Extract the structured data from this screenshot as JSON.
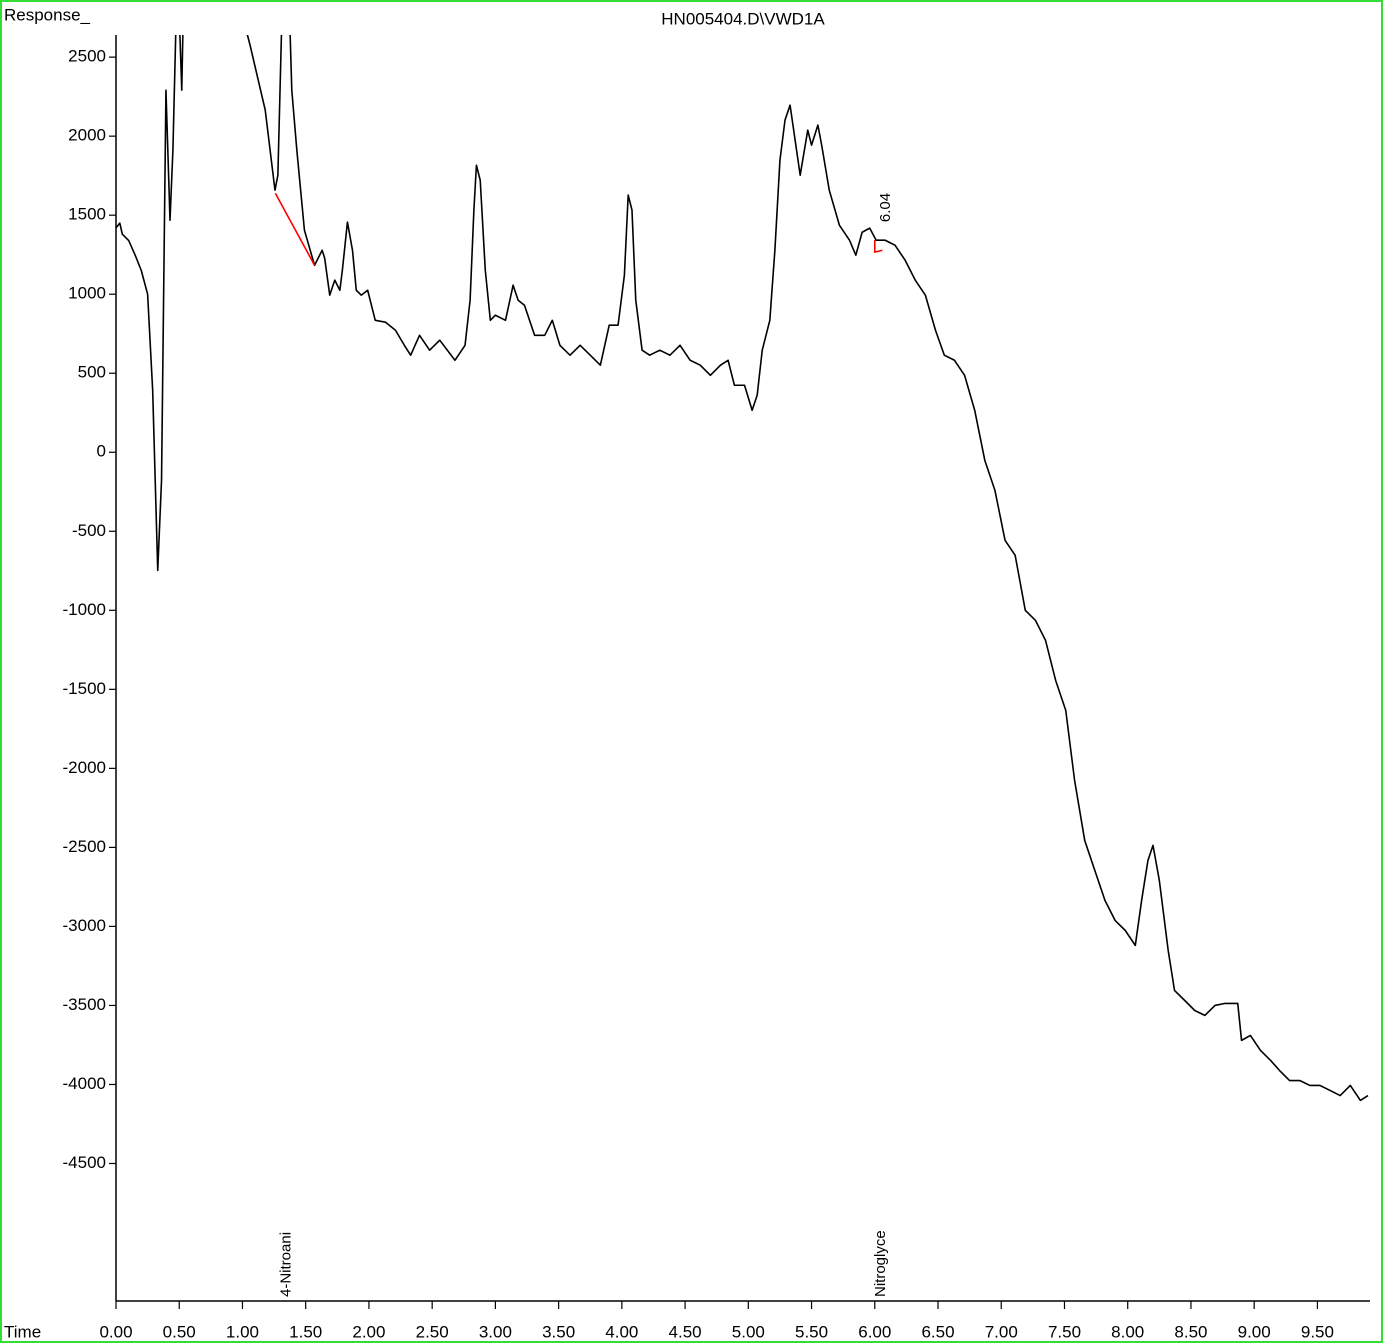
{
  "chart_data": {
    "type": "line",
    "title": "HN005404.D\\VWD1A",
    "y_label": "Response_",
    "x_label": "Time",
    "xlim": [
      0,
      9.9
    ],
    "ylim": [
      -5370,
      2640
    ],
    "xticks": [
      {
        "value": 0,
        "label": "0.00"
      },
      {
        "value": 0.5,
        "label": "0.50"
      },
      {
        "value": 1,
        "label": "1.00"
      },
      {
        "value": 1.5,
        "label": "1.50"
      },
      {
        "value": 2,
        "label": "2.00"
      },
      {
        "value": 2.5,
        "label": "2.50"
      },
      {
        "value": 3,
        "label": "3.00"
      },
      {
        "value": 3.5,
        "label": "3.50"
      },
      {
        "value": 4,
        "label": "4.00"
      },
      {
        "value": 4.5,
        "label": "4.50"
      },
      {
        "value": 5,
        "label": "5.00"
      },
      {
        "value": 5.5,
        "label": "5.50"
      },
      {
        "value": 6,
        "label": "6.00"
      },
      {
        "value": 6.5,
        "label": "6.50"
      },
      {
        "value": 7,
        "label": "7.00"
      },
      {
        "value": 7.5,
        "label": "7.50"
      },
      {
        "value": 8,
        "label": "8.00"
      },
      {
        "value": 8.5,
        "label": "8.50"
      },
      {
        "value": 9,
        "label": "9.00"
      },
      {
        "value": 9.5,
        "label": "9.50"
      }
    ],
    "yticks": [
      2500,
      2000,
      1500,
      1000,
      500,
      0,
      -500,
      -1000,
      -1500,
      -2000,
      -2500,
      -3000,
      -3500,
      -4000,
      -4500
    ],
    "x": [
      0,
      0.03,
      0.05,
      0.1,
      0.15,
      0.2,
      0.25,
      0.29,
      0.33,
      0.36,
      0.395,
      0.427,
      0.45,
      0.474,
      0.49,
      0.52,
      0.53,
      1.0,
      1.02,
      1.06,
      1.18,
      1.257,
      1.28,
      1.31,
      1.34,
      1.375,
      1.39,
      1.43,
      1.49,
      1.57,
      1.63,
      1.65,
      1.69,
      1.73,
      1.77,
      1.79,
      1.83,
      1.87,
      1.9,
      1.94,
      1.99,
      2.05,
      2.13,
      2.21,
      2.28,
      2.33,
      2.4,
      2.48,
      2.56,
      2.68,
      2.76,
      2.8,
      2.83,
      2.85,
      2.88,
      2.92,
      2.96,
      3.0,
      3.08,
      3.14,
      3.18,
      3.23,
      3.31,
      3.39,
      3.45,
      3.51,
      3.59,
      3.67,
      3.75,
      3.83,
      3.9,
      3.97,
      4.02,
      4.05,
      4.08,
      4.11,
      4.16,
      4.22,
      4.3,
      4.38,
      4.46,
      4.54,
      4.62,
      4.7,
      4.78,
      4.84,
      4.89,
      4.97,
      5.03,
      5.07,
      5.11,
      5.17,
      5.21,
      5.25,
      5.29,
      5.33,
      5.37,
      5.41,
      5.47,
      5.5,
      5.55,
      5.58,
      5.64,
      5.72,
      5.8,
      5.85,
      5.9,
      5.96,
      6.01,
      6.08,
      6.16,
      6.24,
      6.32,
      6.4,
      6.48,
      6.55,
      6.63,
      6.71,
      6.79,
      6.87,
      6.95,
      7.03,
      7.11,
      7.19,
      7.27,
      7.35,
      7.43,
      7.51,
      7.58,
      7.66,
      7.74,
      7.82,
      7.9,
      7.98,
      8.06,
      8.11,
      8.16,
      8.2,
      8.25,
      8.32,
      8.37,
      8.45,
      8.53,
      8.61,
      8.69,
      8.77,
      8.87,
      8.9,
      8.97,
      9.05,
      9.13,
      9.2,
      9.28,
      9.36,
      9.44,
      9.52,
      9.6,
      9.68,
      9.76,
      9.84,
      9.9
    ],
    "series": [
      {
        "name": "VWD1A",
        "color": "#000000",
        "values": [
          1420,
          1450,
          1380,
          1340,
          1250,
          1150,
          1000,
          392,
          -747,
          -177,
          2291,
          1468,
          1911,
          2700,
          3000,
          2291,
          2700,
          2700,
          2700,
          2576,
          2165,
          1658,
          1753,
          2700,
          3000,
          2700,
          2291,
          1911,
          1405,
          1183,
          1278,
          1228,
          994,
          1089,
          1025,
          1152,
          1456,
          1278,
          1025,
          994,
          1025,
          835,
          823,
          772,
          677,
          614,
          740,
          646,
          709,
          582,
          677,
          962,
          1532,
          1816,
          1721,
          1152,
          835,
          867,
          835,
          1057,
          962,
          930,
          740,
          740,
          835,
          677,
          614,
          677,
          614,
          551,
          804,
          804,
          1120,
          1627,
          1532,
          962,
          646,
          614,
          646,
          614,
          677,
          582,
          551,
          487,
          551,
          582,
          424,
          424,
          266,
          361,
          646,
          835,
          1278,
          1848,
          2101,
          2196,
          1975,
          1753,
          2038,
          1943,
          2070,
          1943,
          1658,
          1437,
          1342,
          1247,
          1392,
          1418,
          1342,
          1342,
          1310,
          1215,
          1089,
          994,
          772,
          614,
          582,
          487,
          266,
          -51,
          -241,
          -557,
          -652,
          -1000,
          -1063,
          -1190,
          -1443,
          -1633,
          -2076,
          -2456,
          -2646,
          -2835,
          -2962,
          -3025,
          -3120,
          -2835,
          -2582,
          -2487,
          -2709,
          -3152,
          -3405,
          -3468,
          -3532,
          -3563,
          -3500,
          -3487,
          -3487,
          -3721,
          -3690,
          -3785,
          -3848,
          -3911,
          -3975,
          -3975,
          -4006,
          -4006,
          -4038,
          -4070,
          -4006,
          -4101,
          -4070
        ]
      }
    ],
    "baselines": [
      {
        "color": "#ff0000",
        "x": [
          1.26,
          1.57
        ],
        "values": [
          1639,
          1183
        ]
      },
      {
        "color": "#ff0000",
        "x": [
          6.0,
          6.0,
          6.06
        ],
        "values": [
          1342,
          1266,
          1278
        ]
      }
    ],
    "peaks": [
      {
        "name": "4-Nitroani",
        "rt": 1.34
      },
      {
        "name": "Nitroglyce",
        "rt": 6.04
      }
    ],
    "label_color": "#00e5e5",
    "frame_color": "#33dd33"
  }
}
